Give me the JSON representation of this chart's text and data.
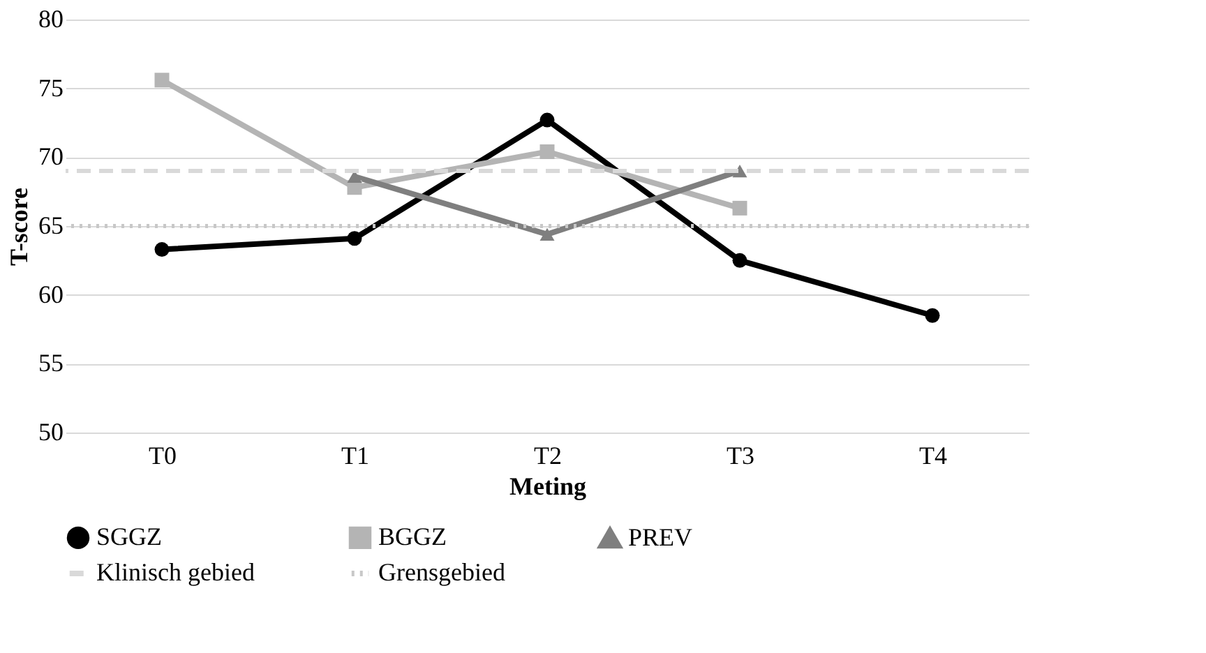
{
  "chart_data": {
    "type": "line",
    "xlabel": "Meting",
    "ylabel": "T-score",
    "categories": [
      "T0",
      "T1",
      "T2",
      "T3",
      "T4"
    ],
    "series": [
      {
        "name": "SGGZ",
        "color": "#000000",
        "marker": "circle",
        "values": [
          63.3,
          64.1,
          72.7,
          62.5,
          58.5
        ]
      },
      {
        "name": "BGGZ",
        "color": "#b4b4b4",
        "marker": "square",
        "values": [
          75.6,
          67.8,
          70.4,
          66.3,
          null
        ]
      },
      {
        "name": "PREV",
        "color": "#7f7f7f",
        "marker": "triangle",
        "values": [
          null,
          68.6,
          64.4,
          69.0,
          null
        ]
      }
    ],
    "ref_lines": [
      {
        "axis": "y",
        "value": 69,
        "label": "Klinisch gebied",
        "color": "#d9d9d9",
        "line_style": "dashed"
      },
      {
        "axis": "y",
        "value": 65,
        "label": "Grensgebied",
        "color": "#c8c8c8",
        "line_style": "dotted"
      }
    ],
    "ylim": [
      50,
      80
    ],
    "yticks": [
      50,
      55,
      60,
      65,
      70,
      75,
      80
    ],
    "grid": "y",
    "legend": "bottom",
    "line_style": "solid"
  }
}
